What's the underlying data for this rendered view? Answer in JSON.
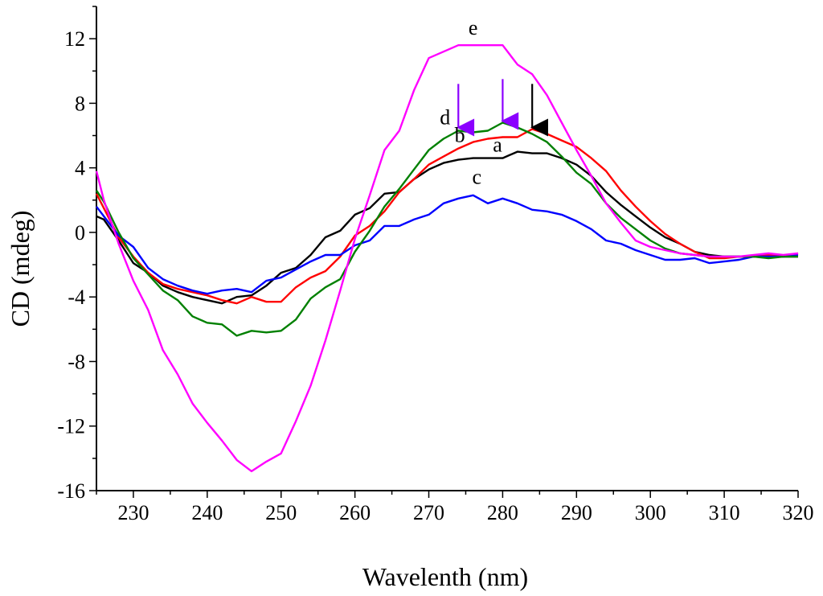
{
  "chart_data": {
    "type": "line",
    "title": "",
    "xlabel": "Wavelenth (nm)",
    "ylabel": "CD (mdeg)",
    "xlim": [
      225,
      320
    ],
    "ylim": [
      -16,
      14
    ],
    "xticks": [
      230,
      240,
      250,
      260,
      270,
      280,
      290,
      300,
      310,
      320
    ],
    "yticks": [
      -16,
      -12,
      -8,
      -4,
      0,
      4,
      8,
      12
    ],
    "series": [
      {
        "name": "a",
        "color": "#000000",
        "x": [
          225,
          226,
          228,
          230,
          232,
          234,
          236,
          238,
          240,
          242,
          244,
          246,
          248,
          250,
          252,
          254,
          256,
          258,
          260,
          262,
          264,
          266,
          268,
          270,
          272,
          274,
          276,
          278,
          280,
          282,
          284,
          286,
          288,
          290,
          292,
          294,
          296,
          298,
          300,
          302,
          304,
          306,
          308,
          310,
          312,
          314,
          316,
          318,
          320
        ],
        "y": [
          1.0,
          0.8,
          -0.5,
          -1.9,
          -2.5,
          -3.3,
          -3.7,
          -4.0,
          -4.2,
          -4.4,
          -4.0,
          -3.9,
          -3.3,
          -2.5,
          -2.2,
          -1.4,
          -0.3,
          0.1,
          1.1,
          1.5,
          2.4,
          2.5,
          3.3,
          3.9,
          4.3,
          4.5,
          4.6,
          4.6,
          4.6,
          5.0,
          4.9,
          4.9,
          4.6,
          4.2,
          3.5,
          2.5,
          1.7,
          1.0,
          0.3,
          -0.3,
          -0.7,
          -1.2,
          -1.4,
          -1.5,
          -1.5,
          -1.5,
          -1.5,
          -1.5,
          -1.5
        ]
      },
      {
        "name": "b",
        "color": "#ff0000",
        "x": [
          225,
          226,
          228,
          230,
          232,
          234,
          236,
          238,
          240,
          242,
          244,
          246,
          248,
          250,
          252,
          254,
          256,
          258,
          260,
          262,
          264,
          266,
          268,
          270,
          272,
          274,
          276,
          278,
          280,
          282,
          284,
          286,
          288,
          290,
          292,
          294,
          296,
          298,
          300,
          302,
          304,
          306,
          308,
          310,
          312,
          314,
          316,
          318,
          320
        ],
        "y": [
          2.4,
          1.5,
          -0.3,
          -1.5,
          -2.5,
          -3.2,
          -3.5,
          -3.7,
          -3.9,
          -4.2,
          -4.4,
          -4.0,
          -4.3,
          -4.3,
          -3.4,
          -2.8,
          -2.4,
          -1.5,
          -0.2,
          0.4,
          1.3,
          2.5,
          3.3,
          4.2,
          4.7,
          5.2,
          5.6,
          5.8,
          5.9,
          5.9,
          6.4,
          6.1,
          5.7,
          5.3,
          4.6,
          3.8,
          2.6,
          1.6,
          0.7,
          -0.1,
          -0.7,
          -1.2,
          -1.6,
          -1.6,
          -1.5,
          -1.5,
          -1.4,
          -1.5,
          -1.3
        ]
      },
      {
        "name": "c",
        "color": "#0000ff",
        "x": [
          225,
          226,
          228,
          230,
          232,
          234,
          236,
          238,
          240,
          242,
          244,
          246,
          248,
          250,
          252,
          254,
          256,
          258,
          260,
          262,
          264,
          266,
          268,
          270,
          272,
          274,
          276,
          278,
          280,
          282,
          284,
          286,
          288,
          290,
          292,
          294,
          296,
          298,
          300,
          302,
          304,
          306,
          308,
          310,
          312,
          314,
          316,
          318,
          320
        ],
        "y": [
          1.6,
          1.0,
          -0.2,
          -0.9,
          -2.2,
          -2.9,
          -3.3,
          -3.6,
          -3.8,
          -3.6,
          -3.5,
          -3.7,
          -3.0,
          -2.8,
          -2.3,
          -1.8,
          -1.4,
          -1.4,
          -0.8,
          -0.5,
          0.4,
          0.4,
          0.8,
          1.1,
          1.8,
          2.1,
          2.3,
          1.8,
          2.1,
          1.8,
          1.4,
          1.3,
          1.1,
          0.7,
          0.2,
          -0.5,
          -0.7,
          -1.1,
          -1.4,
          -1.7,
          -1.7,
          -1.6,
          -1.9,
          -1.8,
          -1.7,
          -1.5,
          -1.5,
          -1.5,
          -1.4
        ]
      },
      {
        "name": "d",
        "color": "#008000",
        "x": [
          225,
          226,
          228,
          230,
          232,
          234,
          236,
          238,
          240,
          242,
          244,
          246,
          248,
          250,
          252,
          254,
          256,
          258,
          260,
          262,
          264,
          266,
          268,
          270,
          272,
          274,
          276,
          278,
          280,
          282,
          284,
          286,
          288,
          290,
          292,
          294,
          296,
          298,
          300,
          302,
          304,
          306,
          308,
          310,
          312,
          314,
          316,
          318,
          320
        ],
        "y": [
          2.6,
          1.9,
          0.0,
          -1.6,
          -2.6,
          -3.6,
          -4.2,
          -5.2,
          -5.6,
          -5.7,
          -6.4,
          -6.1,
          -6.2,
          -6.1,
          -5.4,
          -4.1,
          -3.4,
          -2.9,
          -1.2,
          0.1,
          1.6,
          2.7,
          3.9,
          5.1,
          5.8,
          6.3,
          6.2,
          6.3,
          6.8,
          6.5,
          6.1,
          5.6,
          4.7,
          3.7,
          3.0,
          1.8,
          0.9,
          0.2,
          -0.5,
          -1.0,
          -1.3,
          -1.4,
          -1.5,
          -1.5,
          -1.5,
          -1.5,
          -1.6,
          -1.5,
          -1.5
        ]
      },
      {
        "name": "e",
        "color": "#ff00ff",
        "x": [
          225,
          226,
          228,
          230,
          232,
          234,
          236,
          238,
          240,
          242,
          244,
          246,
          248,
          250,
          252,
          254,
          256,
          258,
          260,
          262,
          264,
          266,
          268,
          270,
          272,
          274,
          276,
          278,
          280,
          282,
          284,
          286,
          288,
          290,
          292,
          294,
          296,
          298,
          300,
          302,
          304,
          306,
          308,
          310,
          312,
          314,
          316,
          318,
          320
        ],
        "y": [
          3.8,
          2.0,
          -0.7,
          -3.0,
          -4.8,
          -7.3,
          -8.8,
          -10.6,
          -11.8,
          -12.9,
          -14.1,
          -14.8,
          -14.2,
          -13.7,
          -11.7,
          -9.5,
          -6.7,
          -3.6,
          -0.4,
          2.3,
          5.1,
          6.3,
          8.8,
          10.8,
          11.2,
          11.6,
          11.6,
          11.6,
          11.6,
          10.4,
          9.8,
          8.5,
          6.8,
          5.1,
          3.5,
          1.8,
          0.6,
          -0.5,
          -0.9,
          -1.1,
          -1.3,
          -1.4,
          -1.5,
          -1.5,
          -1.5,
          -1.4,
          -1.3,
          -1.4,
          -1.3
        ]
      }
    ],
    "annotations": [
      {
        "text": "e",
        "x": 276.0,
        "y": 12.25
      },
      {
        "text": "d",
        "x": 272.2,
        "y": 6.7
      },
      {
        "text": "b",
        "x": 274.2,
        "y": 5.6
      },
      {
        "text": "a",
        "x": 279.3,
        "y": 5.0
      },
      {
        "text": "c",
        "x": 276.5,
        "y": 3.0
      }
    ],
    "arrows": [
      {
        "x": 274,
        "y_from": 9.2,
        "y_to": 6.5,
        "color": "#8b00ff"
      },
      {
        "x": 280,
        "y_from": 9.5,
        "y_to": 6.9,
        "color": "#8b00ff"
      },
      {
        "x": 284,
        "y_from": 9.2,
        "y_to": 6.5,
        "color": "#000000"
      }
    ]
  }
}
